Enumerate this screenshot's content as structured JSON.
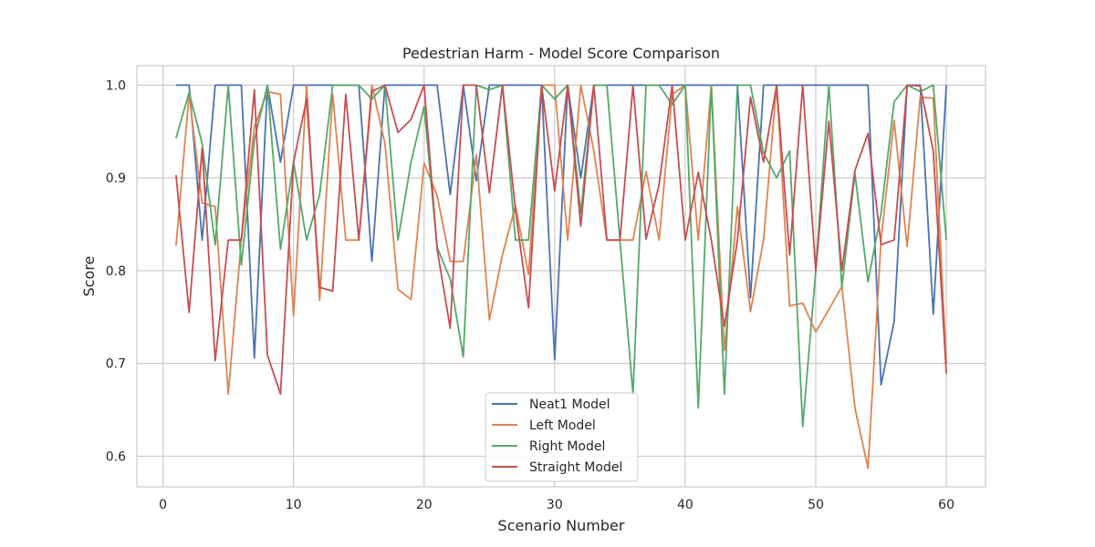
{
  "chart_data": {
    "type": "line",
    "title": "Pedestrian Harm - Model Score Comparison",
    "xlabel": "Scenario Number",
    "ylabel": "Score",
    "xlim": [
      -2,
      63
    ],
    "ylim": [
      0.567,
      1.021
    ],
    "xticks": [
      0,
      10,
      20,
      30,
      40,
      50,
      60
    ],
    "yticks": [
      0.6,
      0.7,
      0.8,
      0.9,
      1.0
    ],
    "xtick_labels": [
      "0",
      "10",
      "20",
      "30",
      "40",
      "50",
      "60"
    ],
    "ytick_labels": [
      "0.6",
      "0.7",
      "0.8",
      "0.9",
      "1.0"
    ],
    "grid": true,
    "legend_position": "lower-center",
    "x": [
      1,
      2,
      3,
      4,
      5,
      6,
      7,
      8,
      9,
      10,
      11,
      12,
      13,
      14,
      15,
      16,
      17,
      18,
      19,
      20,
      21,
      22,
      23,
      24,
      25,
      26,
      27,
      28,
      29,
      30,
      31,
      32,
      33,
      34,
      35,
      36,
      37,
      38,
      39,
      40,
      41,
      42,
      43,
      44,
      45,
      46,
      47,
      48,
      49,
      50,
      51,
      52,
      53,
      54,
      55,
      56,
      57,
      58,
      59,
      60
    ],
    "series": [
      {
        "name": "Neat1 Model",
        "color": "#4c72b0",
        "values": [
          1.0,
          1.0,
          0.833,
          1.0,
          1.0,
          1.0,
          0.706,
          1.0,
          0.917,
          1.0,
          1.0,
          1.0,
          1.0,
          1.0,
          1.0,
          0.81,
          1.0,
          1.0,
          1.0,
          1.0,
          1.0,
          0.882,
          1.0,
          0.897,
          1.0,
          1.0,
          1.0,
          1.0,
          1.0,
          0.704,
          1.0,
          0.9,
          1.0,
          1.0,
          1.0,
          1.0,
          1.0,
          1.0,
          1.0,
          1.0,
          1.0,
          1.0,
          1.0,
          1.0,
          0.771,
          1.0,
          1.0,
          1.0,
          1.0,
          1.0,
          1.0,
          1.0,
          1.0,
          1.0,
          0.677,
          0.745,
          1.0,
          1.0,
          0.753,
          1.0
        ]
      },
      {
        "name": "Left Model",
        "color": "#dd8452",
        "values": [
          0.827,
          0.99,
          0.873,
          0.869,
          0.667,
          0.833,
          0.955,
          0.993,
          0.99,
          0.751,
          1.0,
          0.768,
          0.99,
          0.833,
          0.833,
          1.0,
          0.937,
          0.78,
          0.769,
          0.916,
          0.881,
          0.81,
          0.81,
          0.925,
          0.747,
          0.817,
          0.87,
          0.796,
          1.0,
          1.0,
          0.833,
          1.0,
          0.929,
          0.833,
          0.833,
          0.833,
          0.907,
          0.833,
          0.99,
          1.0,
          0.833,
          1.0,
          0.714,
          0.869,
          0.756,
          0.833,
          1.0,
          0.762,
          0.765,
          0.734,
          0.758,
          0.783,
          0.652,
          0.587,
          0.833,
          0.962,
          0.826,
          0.987,
          0.986,
          0.7
        ]
      },
      {
        "name": "Right Model",
        "color": "#55a868",
        "values": [
          0.943,
          0.992,
          0.937,
          0.828,
          1.0,
          0.806,
          0.941,
          1.0,
          0.823,
          0.917,
          0.833,
          0.882,
          1.0,
          1.0,
          1.0,
          0.985,
          1.0,
          0.833,
          0.917,
          0.977,
          0.825,
          0.791,
          0.707,
          1.0,
          0.995,
          1.0,
          0.833,
          0.833,
          1.0,
          0.985,
          1.0,
          0.862,
          1.0,
          1.0,
          0.833,
          0.667,
          1.0,
          1.0,
          0.979,
          1.0,
          0.652,
          1.0,
          0.667,
          1.0,
          1.0,
          0.927,
          0.9,
          0.929,
          0.632,
          0.8,
          1.0,
          0.782,
          0.905,
          0.788,
          0.862,
          0.982,
          1.0,
          0.993,
          1.0,
          0.833
        ]
      },
      {
        "name": "Straight Model",
        "color": "#c44e52",
        "values": [
          0.903,
          0.755,
          0.932,
          0.703,
          0.833,
          0.833,
          0.995,
          0.709,
          0.667,
          0.917,
          0.985,
          0.782,
          0.778,
          0.99,
          0.833,
          0.993,
          1.0,
          0.949,
          0.963,
          1.0,
          0.823,
          0.738,
          1.0,
          1.0,
          0.884,
          1.0,
          0.865,
          0.76,
          1.0,
          0.886,
          1.0,
          0.848,
          1.0,
          0.833,
          0.833,
          1.0,
          0.834,
          0.893,
          1.0,
          0.833,
          0.906,
          0.833,
          0.74,
          0.833,
          0.987,
          0.917,
          1.0,
          0.817,
          1.0,
          0.8,
          0.961,
          0.8,
          0.908,
          0.948,
          0.828,
          0.833,
          1.0,
          0.999,
          0.929,
          0.689
        ]
      }
    ]
  }
}
